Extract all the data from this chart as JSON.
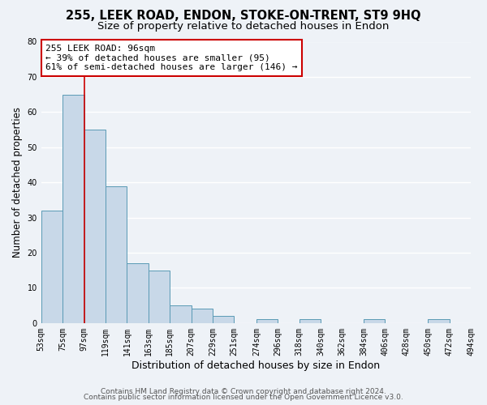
{
  "title": "255, LEEK ROAD, ENDON, STOKE-ON-TRENT, ST9 9HQ",
  "subtitle": "Size of property relative to detached houses in Endon",
  "xlabel": "Distribution of detached houses by size in Endon",
  "ylabel": "Number of detached properties",
  "bar_edges": [
    53,
    75,
    97,
    119,
    141,
    163,
    185,
    207,
    229,
    251,
    274,
    296,
    318,
    340,
    362,
    384,
    406,
    428,
    450,
    472,
    494
  ],
  "bar_heights": [
    32,
    65,
    55,
    39,
    17,
    15,
    5,
    4,
    2,
    0,
    1,
    0,
    1,
    0,
    0,
    1,
    0,
    0,
    1,
    0
  ],
  "bar_color": "#c8d8e8",
  "bar_edge_color": "#5a9ab5",
  "bg_color": "#eef2f7",
  "grid_color": "#ffffff",
  "property_line_x": 97,
  "property_line_color": "#cc0000",
  "annotation_line0": "255 LEEK ROAD: 96sqm",
  "annotation_line1": "← 39% of detached houses are smaller (95)",
  "annotation_line2": "61% of semi-detached houses are larger (146) →",
  "annotation_box_color": "#ffffff",
  "annotation_box_edge_color": "#cc0000",
  "xlim": [
    53,
    494
  ],
  "ylim": [
    0,
    80
  ],
  "yticks": [
    0,
    10,
    20,
    30,
    40,
    50,
    60,
    70,
    80
  ],
  "xtick_labels": [
    "53sqm",
    "75sqm",
    "97sqm",
    "119sqm",
    "141sqm",
    "163sqm",
    "185sqm",
    "207sqm",
    "229sqm",
    "251sqm",
    "274sqm",
    "296sqm",
    "318sqm",
    "340sqm",
    "362sqm",
    "384sqm",
    "406sqm",
    "428sqm",
    "450sqm",
    "472sqm",
    "494sqm"
  ],
  "xtick_positions": [
    53,
    75,
    97,
    119,
    141,
    163,
    185,
    207,
    229,
    251,
    274,
    296,
    318,
    340,
    362,
    384,
    406,
    428,
    450,
    472,
    494
  ],
  "footer_line1": "Contains HM Land Registry data © Crown copyright and database right 2024.",
  "footer_line2": "Contains public sector information licensed under the Open Government Licence v3.0.",
  "title_fontsize": 10.5,
  "subtitle_fontsize": 9.5,
  "xlabel_fontsize": 9,
  "ylabel_fontsize": 8.5,
  "tick_fontsize": 7,
  "annotation_fontsize": 8,
  "footer_fontsize": 6.5
}
